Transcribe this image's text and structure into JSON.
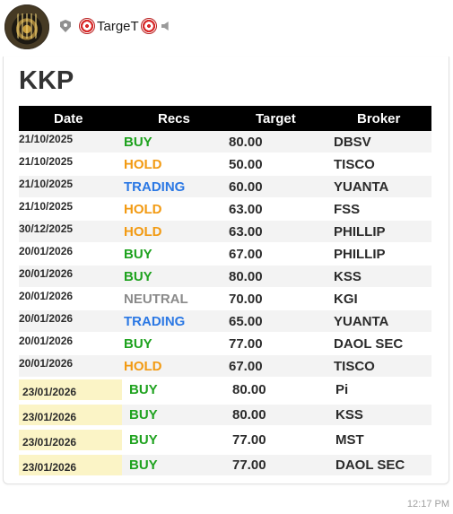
{
  "header": {
    "channel_name": "TargeT",
    "icons": [
      "avatar",
      "shield-icon",
      "target-icon",
      "speaker-icon"
    ]
  },
  "message": {
    "title": "KKP",
    "columns": [
      "Date",
      "Recs",
      "Target",
      "Broker"
    ],
    "rows": [
      {
        "date": "21/10/2025",
        "rec": "BUY",
        "target": "80.00",
        "broker": "DBSV",
        "rec_class": "buy"
      },
      {
        "date": "21/10/2025",
        "rec": "HOLD",
        "target": "50.00",
        "broker": "TISCO",
        "rec_class": "hold"
      },
      {
        "date": "21/10/2025",
        "rec": "TRADING",
        "target": "60.00",
        "broker": "YUANTA",
        "rec_class": "trading"
      },
      {
        "date": "21/10/2025",
        "rec": "HOLD",
        "target": "63.00",
        "broker": "FSS",
        "rec_class": "hold"
      },
      {
        "date": "30/12/2025",
        "rec": "HOLD",
        "target": "63.00",
        "broker": "PHILLIP",
        "rec_class": "hold"
      },
      {
        "date": "20/01/2026",
        "rec": "BUY",
        "target": "67.00",
        "broker": "PHILLIP",
        "rec_class": "buy"
      },
      {
        "date": "20/01/2026",
        "rec": "BUY",
        "target": "80.00",
        "broker": "KSS",
        "rec_class": "buy"
      },
      {
        "date": "20/01/2026",
        "rec": "NEUTRAL",
        "target": "70.00",
        "broker": "KGI",
        "rec_class": "neutral"
      },
      {
        "date": "20/01/2026",
        "rec": "TRADING",
        "target": "65.00",
        "broker": "YUANTA",
        "rec_class": "trading"
      },
      {
        "date": "20/01/2026",
        "rec": "BUY",
        "target": "77.00",
        "broker": "DAOL SEC",
        "rec_class": "buy"
      },
      {
        "date": "20/01/2026",
        "rec": "HOLD",
        "target": "67.00",
        "broker": "TISCO",
        "rec_class": "hold"
      }
    ],
    "highlighted_rows": [
      {
        "date": "23/01/2026",
        "rec": "BUY",
        "target": "80.00",
        "broker": "Pi",
        "rec_class": "buy"
      },
      {
        "date": "23/01/2026",
        "rec": "BUY",
        "target": "80.00",
        "broker": "KSS",
        "rec_class": "buy"
      },
      {
        "date": "23/01/2026",
        "rec": "BUY",
        "target": "77.00",
        "broker": "MST",
        "rec_class": "buy"
      },
      {
        "date": "23/01/2026",
        "rec": "BUY",
        "target": "77.00",
        "broker": "DAOL SEC",
        "rec_class": "buy"
      }
    ],
    "time": "12:17 PM"
  },
  "colors": {
    "buy": "#1ea21e",
    "hold": "#f29a12",
    "trading": "#2b78e4",
    "neutral": "#8a8a8a",
    "header_bg": "#000000",
    "highlight_date_bg": "#fbf4c6"
  }
}
